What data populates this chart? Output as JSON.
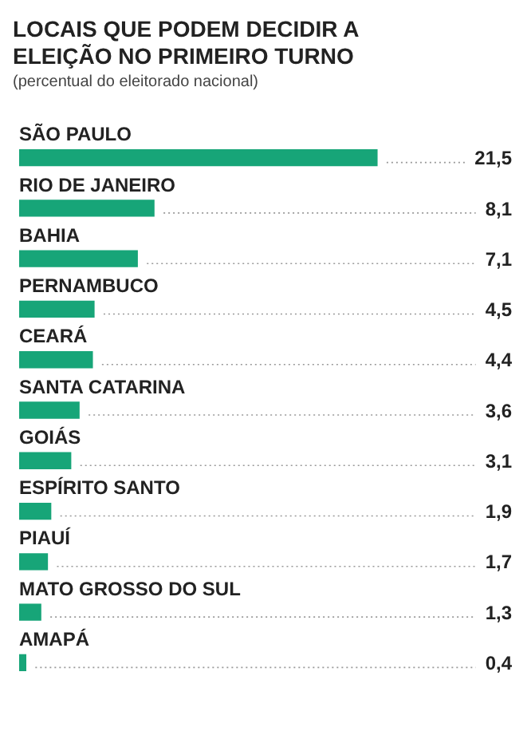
{
  "chart_data": {
    "type": "bar",
    "orientation": "horizontal",
    "title": "LOCAIS QUE PODEM DECIDIR A ELEIÇÃO NO PRIMEIRO TURNO",
    "subtitle": "(percentual do eleitorado nacional)",
    "categories": [
      "SÃO PAULO",
      "RIO DE JANEIRO",
      "BAHIA",
      "PERNAMBUCO",
      "CEARÁ",
      "SANTA CATARINA",
      "GOIÁS",
      "ESPÍRITO SANTO",
      "PIAUÍ",
      "MATO GROSSO DO SUL",
      "AMAPÁ"
    ],
    "values": [
      21.5,
      8.1,
      7.1,
      4.5,
      4.4,
      3.6,
      3.1,
      1.9,
      1.7,
      1.3,
      0.4
    ],
    "value_labels": [
      "21,5",
      "8,1",
      "7,1",
      "4,5",
      "4,4",
      "3,6",
      "3,1",
      "1,9",
      "1,7",
      "1,3",
      "0,4"
    ],
    "color": "#17a578",
    "legend": false
  }
}
